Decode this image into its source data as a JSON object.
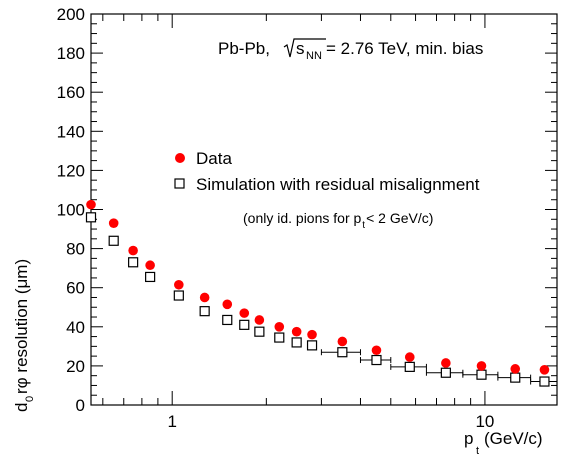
{
  "chart_data": {
    "type": "scatter",
    "x_scale": "log",
    "xlim": [
      0.55,
      17
    ],
    "ylim": [
      0,
      200
    ],
    "xlabel": {
      "main": "p",
      "sub": "t",
      "rest": " (GeV/c)"
    },
    "ylabel": {
      "main": "d",
      "sub": "0",
      "rest": " rφ resolution (μm)"
    },
    "x_ticks": [
      {
        "value": 1,
        "label": "1"
      },
      {
        "value": 10,
        "label": "10"
      }
    ],
    "y_ticks": [
      0,
      20,
      40,
      60,
      80,
      100,
      120,
      140,
      160,
      180,
      200
    ],
    "annotation": {
      "prefix": "Pb-Pb,",
      "radicand_main": "s",
      "radicand_sub": "NN",
      "suffix": " = 2.76 TeV, min. bias"
    },
    "note": {
      "prefix": "(only id. pions for p",
      "sub": "t",
      "suffix": " < 2 GeV/c)"
    },
    "legend_position": "upper-middle",
    "series": [
      {
        "name": "Data",
        "marker": "filled-circle",
        "color": "#ff0000",
        "points": [
          {
            "x": 0.55,
            "y": 102.5
          },
          {
            "x": 0.65,
            "y": 93
          },
          {
            "x": 0.75,
            "y": 79
          },
          {
            "x": 0.85,
            "y": 71.5
          },
          {
            "x": 1.05,
            "y": 61.5
          },
          {
            "x": 1.27,
            "y": 55
          },
          {
            "x": 1.5,
            "y": 51.5
          },
          {
            "x": 1.7,
            "y": 47
          },
          {
            "x": 1.9,
            "y": 43.5
          },
          {
            "x": 2.2,
            "y": 40
          },
          {
            "x": 2.5,
            "y": 37.5
          },
          {
            "x": 2.8,
            "y": 36
          },
          {
            "x": 3.5,
            "y": 32.5
          },
          {
            "x": 4.5,
            "y": 28
          },
          {
            "x": 5.75,
            "y": 24.5
          },
          {
            "x": 7.5,
            "y": 21.5
          },
          {
            "x": 9.75,
            "y": 20
          },
          {
            "x": 12.5,
            "y": 18.5
          },
          {
            "x": 15.5,
            "y": 18
          }
        ]
      },
      {
        "name": "Simulation with residual misalignment",
        "marker": "open-square",
        "color": "#000000",
        "points": [
          {
            "x": 0.55,
            "y": 96
          },
          {
            "x": 0.65,
            "y": 84
          },
          {
            "x": 0.75,
            "y": 73
          },
          {
            "x": 0.85,
            "y": 65.5
          },
          {
            "x": 1.05,
            "y": 56
          },
          {
            "x": 1.27,
            "y": 48
          },
          {
            "x": 1.5,
            "y": 43.5
          },
          {
            "x": 1.7,
            "y": 41
          },
          {
            "x": 1.9,
            "y": 37.5
          },
          {
            "x": 2.2,
            "y": 34.5
          },
          {
            "x": 2.5,
            "y": 32
          },
          {
            "x": 2.8,
            "y": 30.5
          },
          {
            "x": 3.5,
            "y": 27
          },
          {
            "x": 4.5,
            "y": 23
          },
          {
            "x": 5.75,
            "y": 19.5
          },
          {
            "x": 7.5,
            "y": 16.5
          },
          {
            "x": 9.75,
            "y": 15.5
          },
          {
            "x": 12.5,
            "y": 14
          },
          {
            "x": 15.5,
            "y": 12
          }
        ],
        "x_error_bins": [
          {
            "x": 3.5,
            "low": 3,
            "high": 4
          },
          {
            "x": 4.5,
            "low": 4,
            "high": 5
          },
          {
            "x": 5.75,
            "low": 5,
            "high": 6.5
          },
          {
            "x": 7.5,
            "low": 6.5,
            "high": 8.5
          },
          {
            "x": 9.75,
            "low": 8.5,
            "high": 11
          },
          {
            "x": 12.5,
            "low": 11,
            "high": 14
          },
          {
            "x": 15.5,
            "low": 14,
            "high": 17
          }
        ]
      }
    ]
  }
}
